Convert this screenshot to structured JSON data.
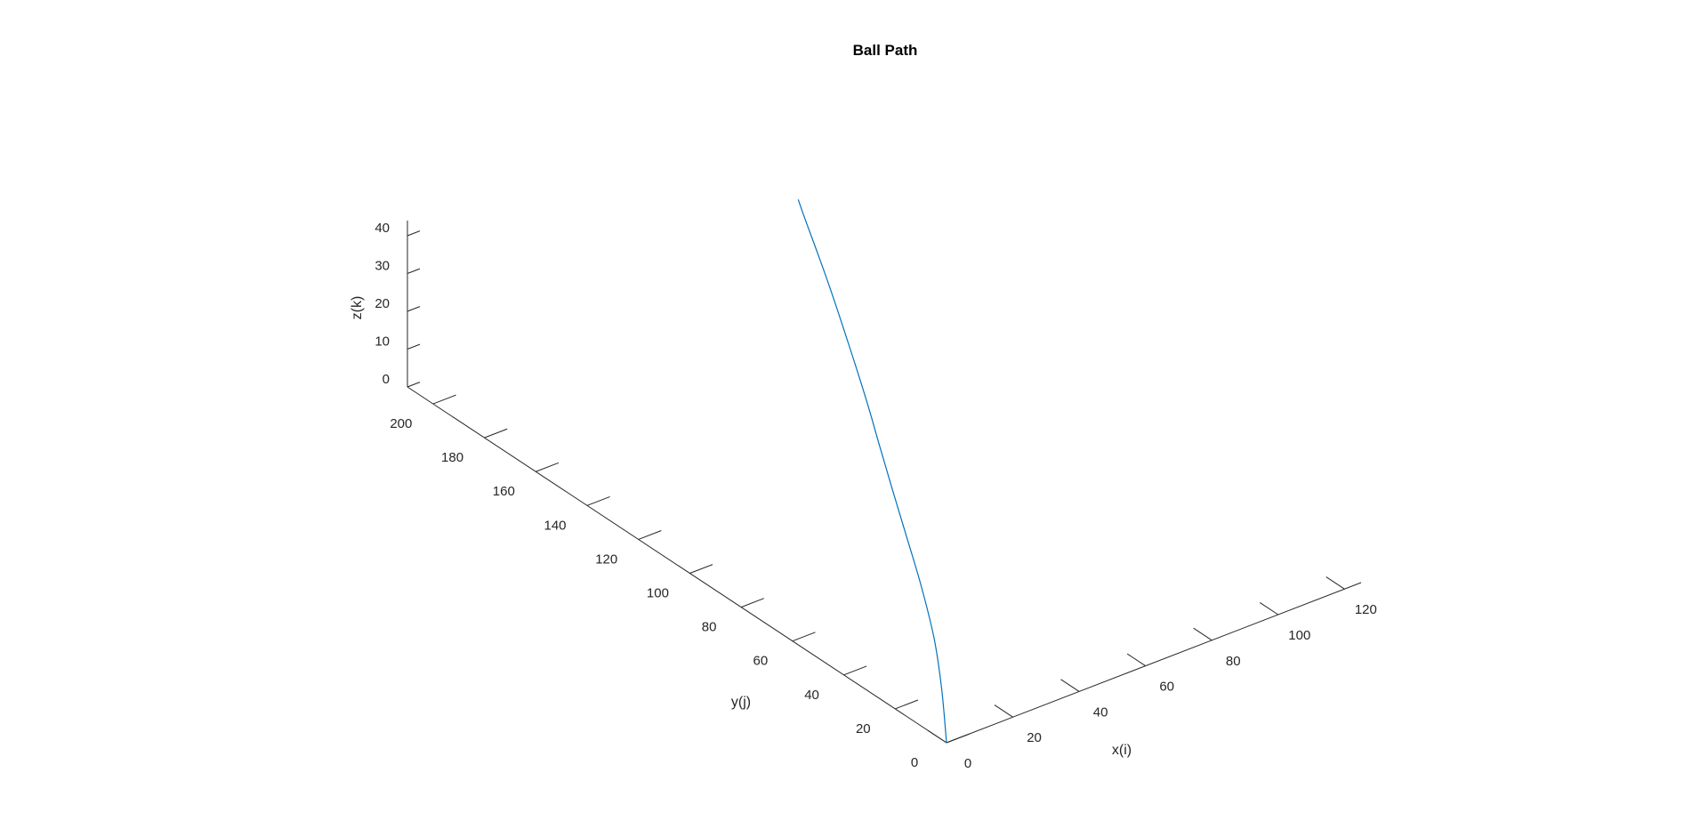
{
  "chart_data": {
    "type": "line3d",
    "title": "Ball Path",
    "xlabel": "x(i)",
    "ylabel": "y(j)",
    "zlabel": "z(k)",
    "xlim": [
      0,
      125
    ],
    "ylim": [
      0,
      210
    ],
    "zlim": [
      0,
      44
    ],
    "xticks": [
      0,
      20,
      40,
      60,
      80,
      100,
      120
    ],
    "yticks": [
      0,
      20,
      40,
      60,
      80,
      100,
      120,
      140,
      160,
      180,
      200
    ],
    "zticks": [
      0,
      10,
      20,
      30,
      40
    ],
    "xtick_labels": [
      "0",
      "20",
      "40",
      "60",
      "80",
      "100",
      "120"
    ],
    "ytick_labels": [
      "0",
      "20",
      "40",
      "60",
      "80",
      "100",
      "120",
      "140",
      "160",
      "180",
      "200"
    ],
    "ztick_labels": [
      "0",
      "10",
      "20",
      "30",
      "40"
    ],
    "grid": false,
    "series": [
      {
        "name": "Ball Path",
        "color": "#0072bd",
        "points": [
          {
            "x": 0.0,
            "y": 0.0,
            "z": 0.0
          },
          {
            "x": 6.6,
            "y": 10.4,
            "z": 7.2
          },
          {
            "x": 13.5,
            "y": 22.2,
            "z": 12.8
          },
          {
            "x": 20.8,
            "y": 36.8,
            "z": 18.1
          },
          {
            "x": 27.6,
            "y": 51.5,
            "z": 22.7
          },
          {
            "x": 33.8,
            "y": 64.9,
            "z": 26.8
          },
          {
            "x": 39.9,
            "y": 77.7,
            "z": 30.4
          },
          {
            "x": 45.7,
            "y": 89.6,
            "z": 33.5
          },
          {
            "x": 51.7,
            "y": 102.2,
            "z": 36.4
          },
          {
            "x": 58.3,
            "y": 116.0,
            "z": 39.0
          },
          {
            "x": 64.6,
            "y": 128.8,
            "z": 40.6
          },
          {
            "x": 70.8,
            "y": 141.6,
            "z": 41.9
          },
          {
            "x": 77.1,
            "y": 154.4,
            "z": 42.6
          },
          {
            "x": 81.6,
            "y": 163.2,
            "z": 42.9
          }
        ]
      }
    ]
  }
}
